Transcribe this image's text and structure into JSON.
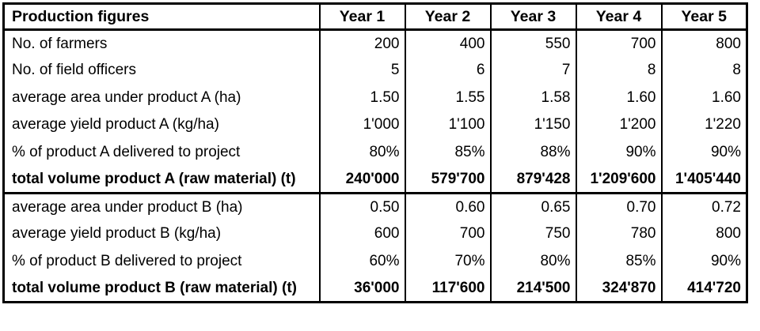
{
  "header": {
    "title": "Production figures",
    "years": [
      "Year 1",
      "Year 2",
      "Year 3",
      "Year 4",
      "Year 5"
    ]
  },
  "rows": [
    {
      "label": "No. of farmers",
      "values": [
        "200",
        "400",
        "550",
        "700",
        "800"
      ],
      "bold": false,
      "section_end": false
    },
    {
      "label": "No. of field officers",
      "values": [
        "5",
        "6",
        "7",
        "8",
        "8"
      ],
      "bold": false,
      "section_end": false
    },
    {
      "label": "average area under product A (ha)",
      "values": [
        "1.50",
        "1.55",
        "1.58",
        "1.60",
        "1.60"
      ],
      "bold": false,
      "section_end": false
    },
    {
      "label": "average yield product A (kg/ha)",
      "values": [
        "1'000",
        "1'100",
        "1'150",
        "1'200",
        "1'220"
      ],
      "bold": false,
      "section_end": false
    },
    {
      "label": "% of product A delivered to project",
      "values": [
        "80%",
        "85%",
        "88%",
        "90%",
        "90%"
      ],
      "bold": false,
      "section_end": false
    },
    {
      "label": "total volume product A (raw material) (t)",
      "values": [
        "240'000",
        "579'700",
        "879'428",
        "1'209'600",
        "1'405'440"
      ],
      "bold": true,
      "section_end": true
    },
    {
      "label": "average area under product B (ha)",
      "values": [
        "0.50",
        "0.60",
        "0.65",
        "0.70",
        "0.72"
      ],
      "bold": false,
      "section_end": false
    },
    {
      "label": "average yield product B (kg/ha)",
      "values": [
        "600",
        "700",
        "750",
        "780",
        "800"
      ],
      "bold": false,
      "section_end": false
    },
    {
      "label": "% of product B delivered to project",
      "values": [
        "60%",
        "70%",
        "80%",
        "85%",
        "90%"
      ],
      "bold": false,
      "section_end": false
    },
    {
      "label": "total volume product B (raw material) (t)",
      "values": [
        "36'000",
        "117'600",
        "214'500",
        "324'870",
        "414'720"
      ],
      "bold": true,
      "section_end": true
    }
  ],
  "colors": {
    "border": "#000000",
    "text": "#000000",
    "background": "#ffffff"
  },
  "chart_data": {
    "type": "table",
    "title": "Production figures",
    "columns": [
      "Production figures",
      "Year 1",
      "Year 2",
      "Year 3",
      "Year 4",
      "Year 5"
    ],
    "rows": [
      {
        "label": "No. of farmers",
        "values": [
          200,
          400,
          550,
          700,
          800
        ]
      },
      {
        "label": "No. of field officers",
        "values": [
          5,
          6,
          7,
          8,
          8
        ]
      },
      {
        "label": "average area under product A (ha)",
        "values": [
          1.5,
          1.55,
          1.58,
          1.6,
          1.6
        ]
      },
      {
        "label": "average yield product A (kg/ha)",
        "values": [
          1000,
          1100,
          1150,
          1200,
          1220
        ]
      },
      {
        "label": "% of product A delivered to project",
        "values": [
          80,
          85,
          88,
          90,
          90
        ],
        "unit": "%"
      },
      {
        "label": "total volume product A (raw material) (t)",
        "values": [
          240000,
          579700,
          879428,
          1209600,
          1405440
        ]
      },
      {
        "label": "average area under product B (ha)",
        "values": [
          0.5,
          0.6,
          0.65,
          0.7,
          0.72
        ]
      },
      {
        "label": "average yield product B (kg/ha)",
        "values": [
          600,
          700,
          750,
          780,
          800
        ]
      },
      {
        "label": "% of product B delivered to project",
        "values": [
          60,
          70,
          80,
          85,
          90
        ],
        "unit": "%"
      },
      {
        "label": "total volume product B (raw material) (t)",
        "values": [
          36000,
          117600,
          214500,
          324870,
          414720
        ]
      }
    ],
    "layout": {
      "thousands_separator": "'",
      "bold_rows": [
        5,
        9
      ],
      "section_breaks_after": [
        5
      ]
    }
  }
}
